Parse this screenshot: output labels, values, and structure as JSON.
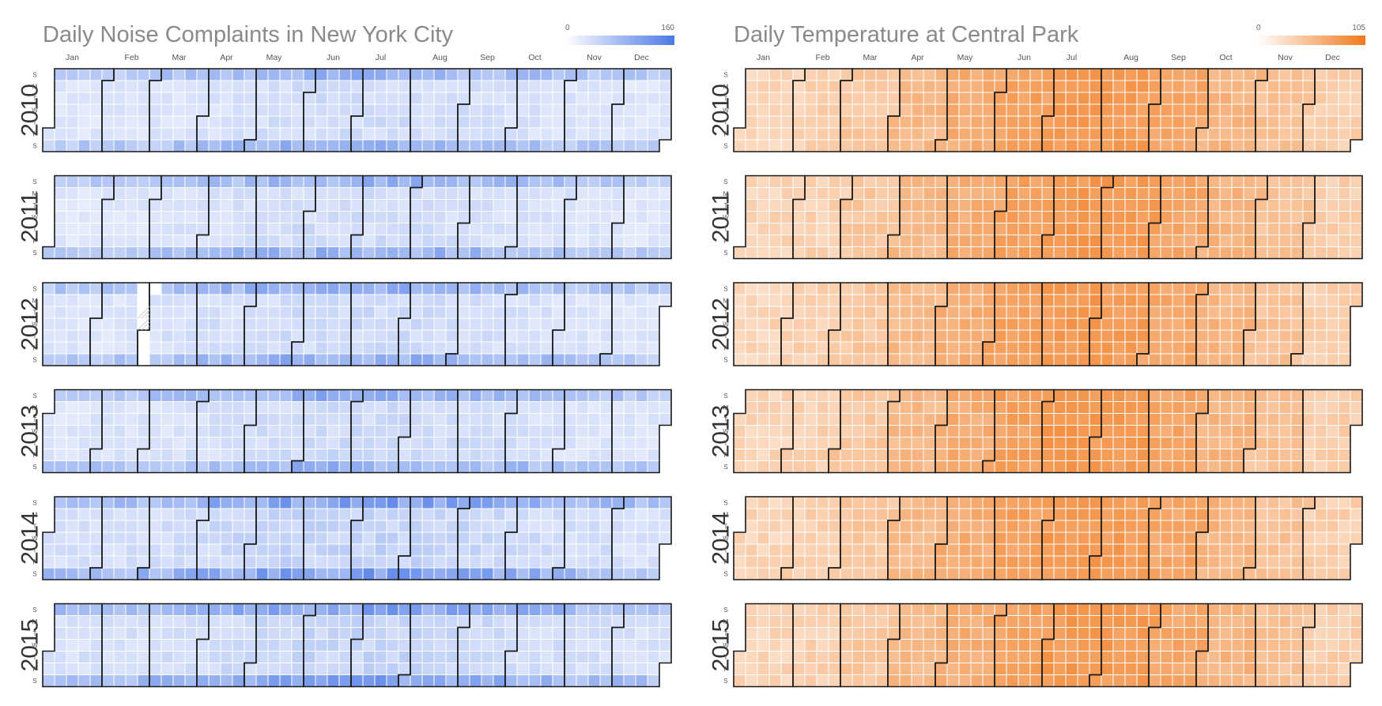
{
  "chart_data": [
    {
      "type": "heatmap",
      "subtype": "calendar",
      "title": "Daily Noise Complaints in New York City",
      "years": [
        "2010",
        "2011",
        "2012",
        "2013",
        "2014",
        "2015"
      ],
      "month_labels": [
        "Jan",
        "Feb",
        "Mar",
        "Apr",
        "May",
        "Jun",
        "Jul",
        "Aug",
        "Sep",
        "Oct",
        "Nov",
        "Dec"
      ],
      "weekday_labels": [
        "S",
        "M",
        "T",
        "W",
        "T",
        "F",
        "S"
      ],
      "color_scale": {
        "min": 0,
        "max": 160,
        "min_label": "0",
        "max_label": "160",
        "low_color": "#ffffff",
        "high_color": "#4a78e6"
      },
      "typical_weekday_value": 35,
      "typical_weekend_value": 75,
      "yearly_level": [
        1.0,
        1.0,
        1.05,
        1.05,
        1.25,
        1.2
      ],
      "missing_range": {
        "year": "2012",
        "from": "2012-02-26",
        "to": "2012-03-04"
      }
    },
    {
      "type": "heatmap",
      "subtype": "calendar",
      "title": "Daily Temperature at Central Park",
      "years": [
        "2010",
        "2011",
        "2012",
        "2013",
        "2014",
        "2015"
      ],
      "month_labels": [
        "Jan",
        "Feb",
        "Mar",
        "Apr",
        "May",
        "Jun",
        "Jul",
        "Aug",
        "Sep",
        "Oct",
        "Nov",
        "Dec"
      ],
      "weekday_labels": [
        "S",
        "M",
        "T",
        "W",
        "T",
        "F",
        "S"
      ],
      "color_scale": {
        "min": 0,
        "max": 105,
        "min_label": "0",
        "max_label": "105",
        "low_color": "#ffffff",
        "high_color": "#f07a1e"
      },
      "monthly_mean_value": [
        33,
        36,
        44,
        55,
        65,
        74,
        80,
        78,
        70,
        59,
        48,
        38
      ]
    }
  ],
  "colors": {
    "title": "#8a8a8a",
    "month_outline": "#1a1a1a",
    "noise_high": "#4a78e6",
    "temp_high": "#f07a1e"
  }
}
